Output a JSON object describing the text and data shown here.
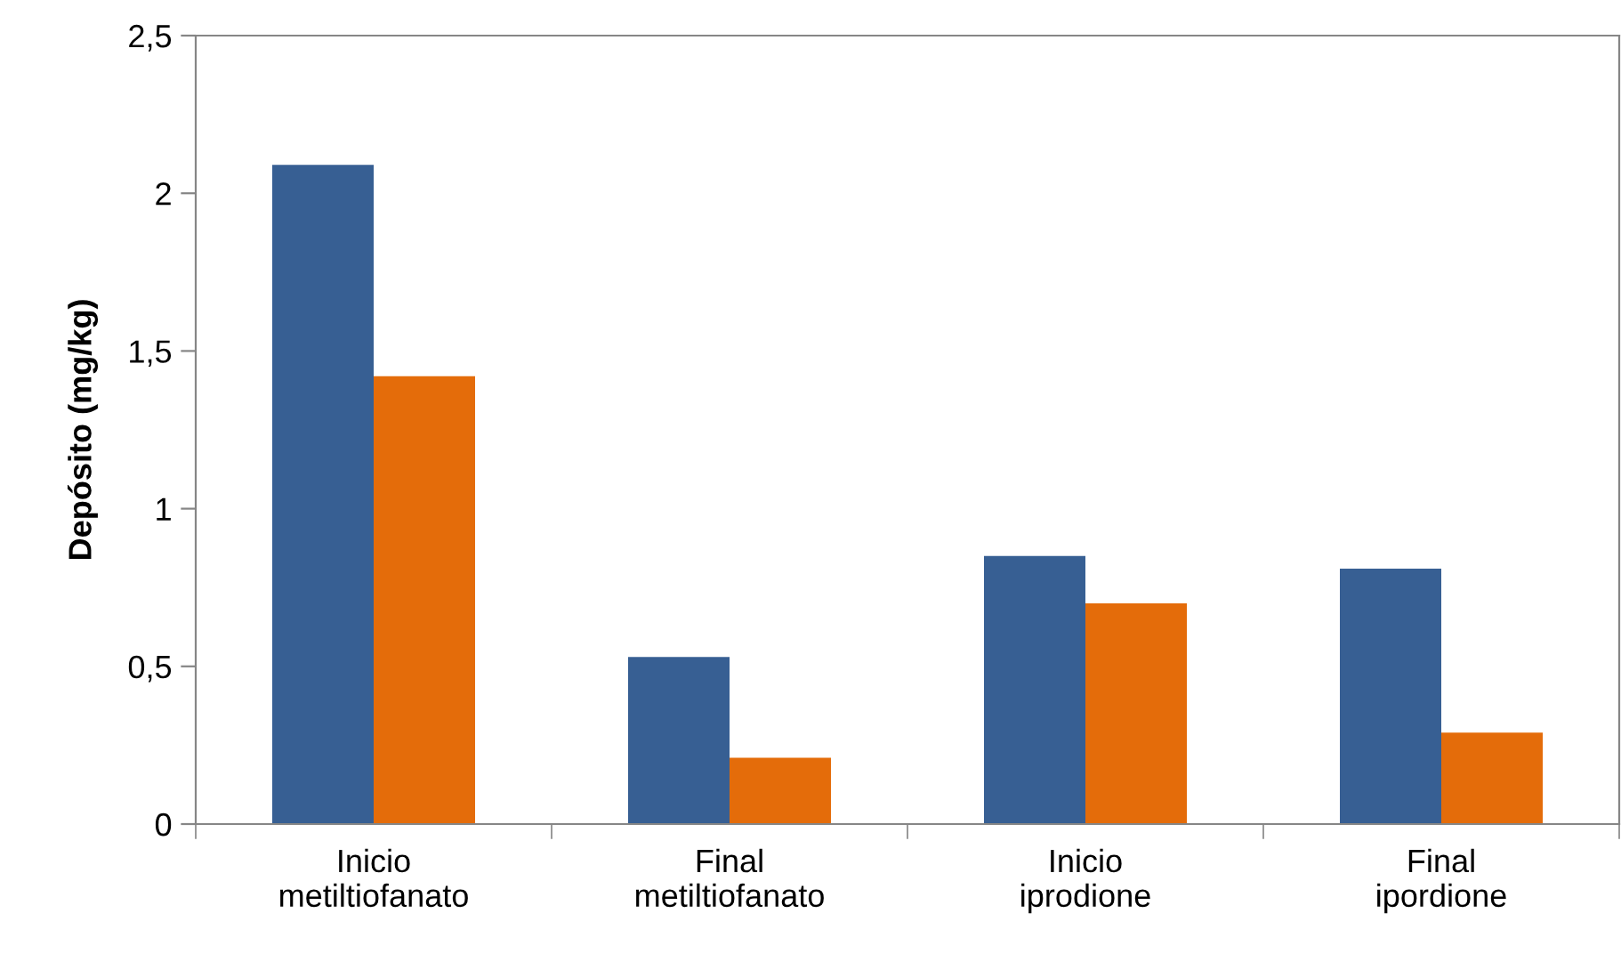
{
  "chart_data": {
    "type": "bar",
    "ylabel": "Depósito (mg/kg)",
    "categories": [
      "Inicio\nmetiltiofanato",
      "Final\nmetiltiofanato",
      "Inicio\niprodione",
      "Final\nipordione"
    ],
    "series": [
      {
        "color": "#375f93",
        "values": [
          2.09,
          0.53,
          0.85,
          0.81
        ]
      },
      {
        "color": "#e46c0a",
        "values": [
          1.42,
          0.21,
          0.7,
          0.29
        ]
      }
    ],
    "ylim": [
      0,
      2.5
    ],
    "yticks": [
      0,
      {
        "value": 0.5,
        "label": "0,5"
      },
      1,
      {
        "value": 1.5,
        "label": "1,5"
      },
      2,
      {
        "value": 2.5,
        "label": "2,5"
      }
    ],
    "grid": false,
    "legend": false
  }
}
